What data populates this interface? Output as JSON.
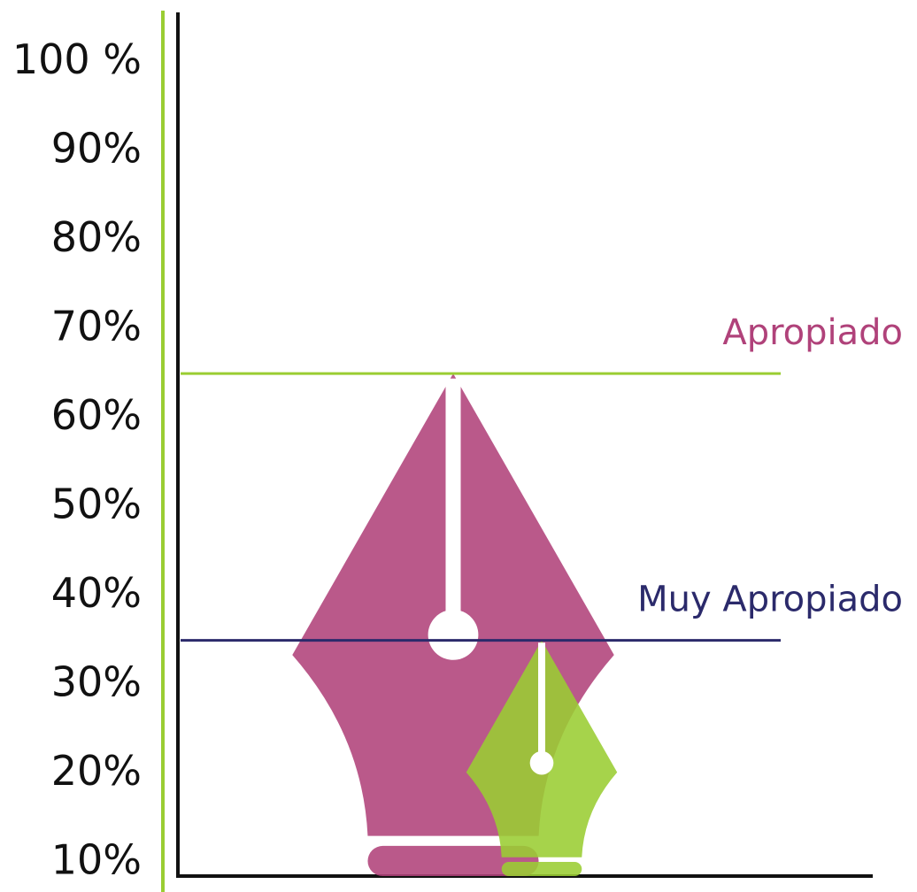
{
  "chart_data": {
    "type": "pictograph",
    "series": [
      {
        "name": "Apropiado",
        "color": "#b0427a",
        "line_color": "#9acd32",
        "label_color": "#b0427a",
        "values": [
          65
        ]
      },
      {
        "name": "Muy Apropiado",
        "color": "#9acd32",
        "line_color": "#2b2a6b",
        "label_color": "#2b2a6b",
        "values": [
          35
        ]
      }
    ],
    "ylim": [
      8.5,
      105.5
    ],
    "yticks": [
      {
        "value": 100,
        "label": "100 %"
      },
      {
        "value": 90,
        "label": "90%"
      },
      {
        "value": 80,
        "label": "80%"
      },
      {
        "value": 70,
        "label": "70%"
      },
      {
        "value": 60,
        "label": "60%"
      },
      {
        "value": 50,
        "label": "50%"
      },
      {
        "value": 40,
        "label": "40%"
      },
      {
        "value": 30,
        "label": "30%"
      },
      {
        "value": 20,
        "label": "20%"
      },
      {
        "value": 10,
        "label": "10%"
      }
    ]
  }
}
